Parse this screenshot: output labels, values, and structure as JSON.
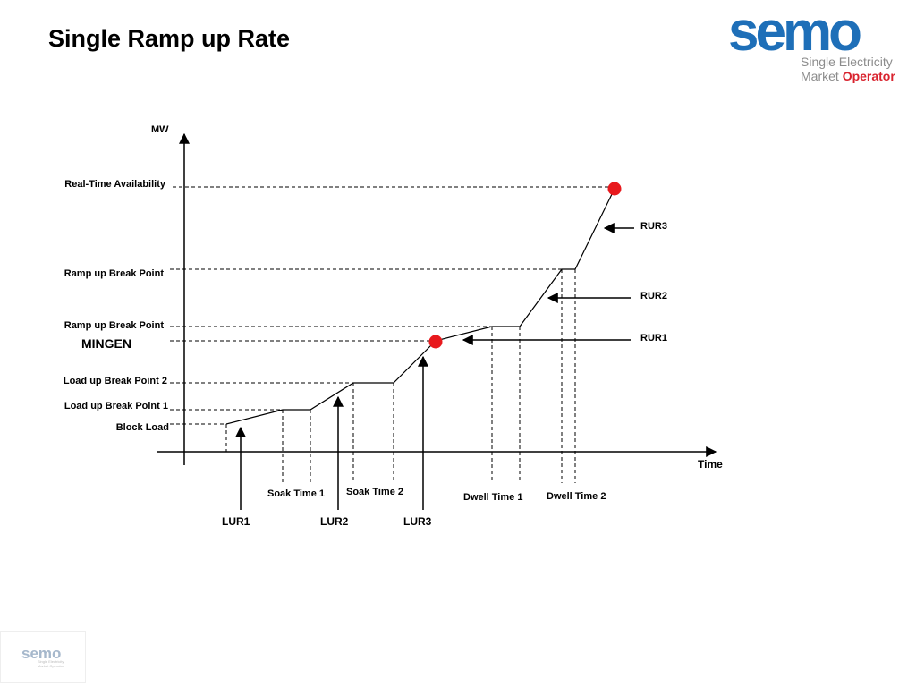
{
  "slide": {
    "title": "Single Ramp up Rate"
  },
  "logo": {
    "word": "semo",
    "line1": "Single Electricity",
    "line2_a": "Market ",
    "line2_b": "Operator",
    "colors": {
      "blue": "#1e6fb8",
      "red": "#d9232e",
      "grey": "#8c8c8c"
    }
  },
  "mini_logo": {
    "word": "semo",
    "line1": "Single Electricity",
    "line2": "Market Operator"
  },
  "diagram": {
    "y_axis_label": "MW",
    "x_axis_label": "Time",
    "levels": [
      {
        "id": "rta",
        "label": "Real-Time Availability"
      },
      {
        "id": "rbp2",
        "label": "Ramp up Break Point"
      },
      {
        "id": "rbp1",
        "label": "Ramp up Break Point"
      },
      {
        "id": "mingen",
        "label": "MINGEN"
      },
      {
        "id": "lbp2",
        "label": "Load up Break Point 2"
      },
      {
        "id": "lbp1",
        "label": "Load up Break Point 1"
      },
      {
        "id": "block",
        "label": "Block Load"
      }
    ],
    "time_labels": [
      {
        "id": "soak1",
        "label": "Soak Time 1"
      },
      {
        "id": "soak2",
        "label": "Soak Time 2"
      },
      {
        "id": "dwell1",
        "label": "Dwell Time 1"
      },
      {
        "id": "dwell2",
        "label": "Dwell Time 2"
      }
    ],
    "rate_labels": [
      {
        "id": "lur1",
        "label": "LUR1"
      },
      {
        "id": "lur2",
        "label": "LUR2"
      },
      {
        "id": "lur3",
        "label": "LUR3"
      },
      {
        "id": "rur1",
        "label": "RUR1"
      },
      {
        "id": "rur2",
        "label": "RUR2"
      },
      {
        "id": "rur3",
        "label": "RUR3"
      }
    ],
    "marker_color": "#e8191d"
  }
}
